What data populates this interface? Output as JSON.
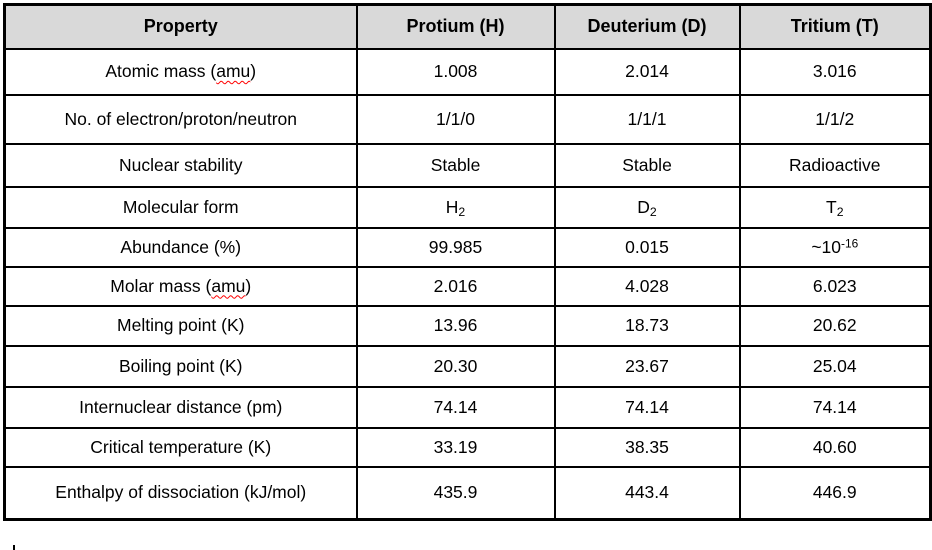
{
  "colors": {
    "header_bg": "#d9d9d9",
    "grid_border": "#000000",
    "spellcheck_squiggle": "#ff0000"
  },
  "table": {
    "columns": [
      "Property",
      "Protium (H)",
      "Deuterium (D)",
      "Tritium (T)"
    ],
    "rows": [
      {
        "property": "Atomic mass (amu)",
        "squiggle_word": "amu",
        "values": [
          "1.008",
          "2.014",
          "3.016"
        ]
      },
      {
        "property": "No. of electron/proton/neutron",
        "values": [
          "1/1/0",
          "1/1/1",
          "1/1/2"
        ]
      },
      {
        "property": "Nuclear stability",
        "values": [
          "Stable",
          "Stable",
          "Radioactive"
        ]
      },
      {
        "property": "Molecular form",
        "values": [
          {
            "text": "H",
            "sub": "2"
          },
          {
            "text": "D",
            "sub": "2"
          },
          {
            "text": "T",
            "sub": "2"
          }
        ]
      },
      {
        "property": "Abundance (%)",
        "values": [
          "99.985",
          "0.015",
          {
            "text": "~10",
            "sup": "-16"
          }
        ]
      },
      {
        "property": "Molar mass (amu)",
        "squiggle_word": "amu",
        "values": [
          "2.016",
          "4.028",
          "6.023"
        ]
      },
      {
        "property": "Melting point (K)",
        "values": [
          "13.96",
          "18.73",
          "20.62"
        ]
      },
      {
        "property": "Boiling point (K)",
        "values": [
          "20.30",
          "23.67",
          "25.04"
        ]
      },
      {
        "property": "Internuclear distance (pm)",
        "values": [
          "74.14",
          "74.14",
          "74.14"
        ]
      },
      {
        "property": "Critical temperature (K)",
        "values": [
          "33.19",
          "38.35",
          "40.60"
        ]
      },
      {
        "property": "Enthalpy of dissociation (kJ/mol)",
        "values": [
          "435.9",
          "443.4",
          "446.9"
        ]
      }
    ]
  }
}
